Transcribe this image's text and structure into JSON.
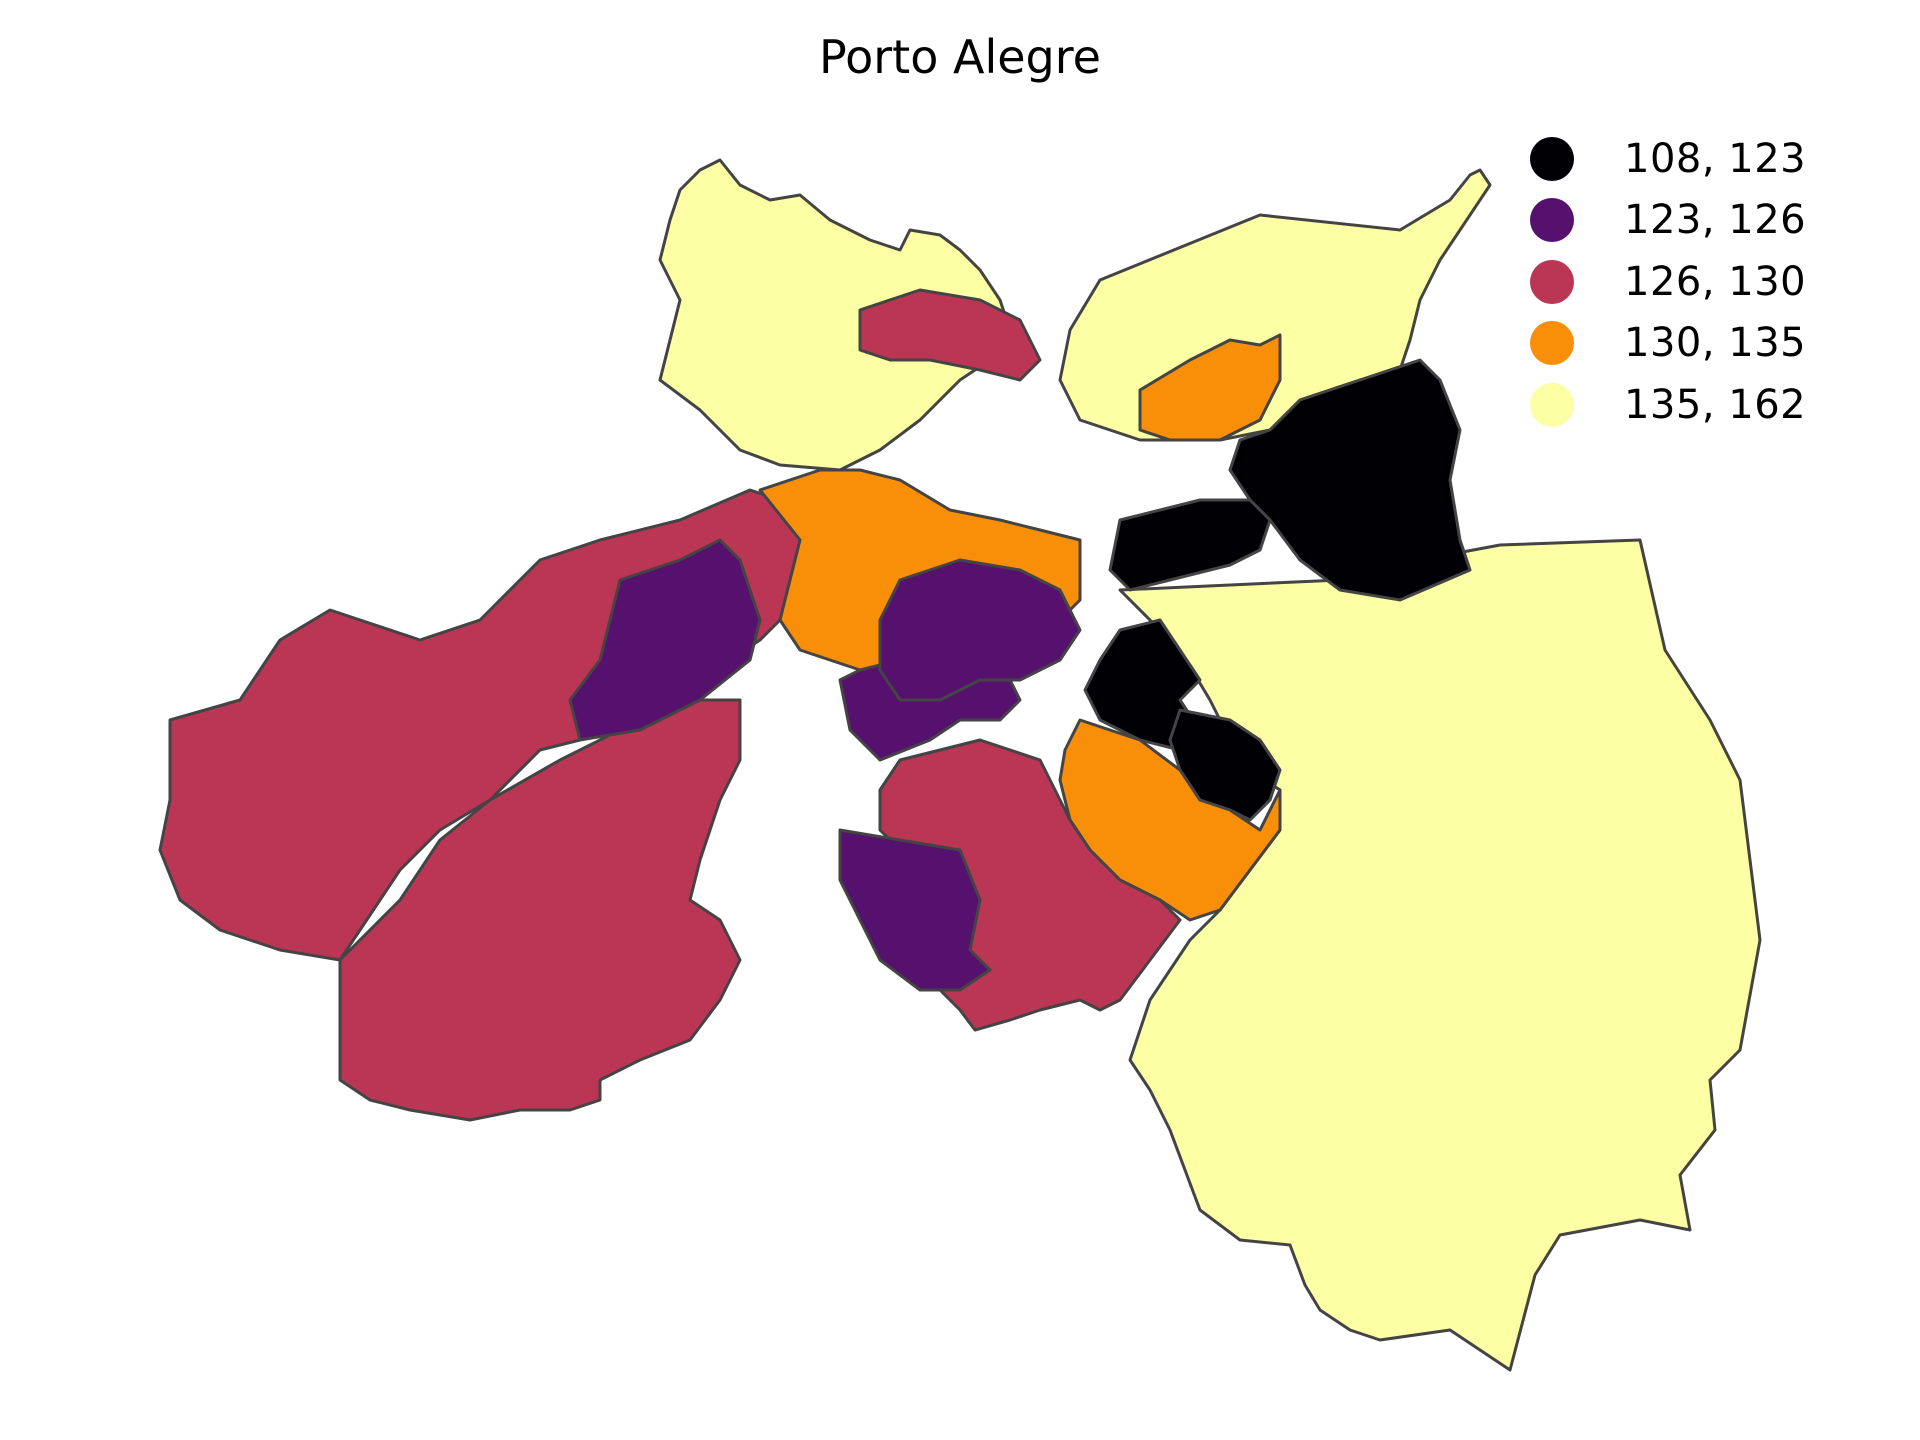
{
  "title": "Porto Alegre",
  "legend": [
    {
      "label": "108, 123",
      "color": "#000004"
    },
    {
      "label": "123, 126",
      "color": "#56106e"
    },
    {
      "label": "126, 130",
      "color": "#bb3654"
    },
    {
      "label": "130, 135",
      "color": "#f98e09"
    },
    {
      "label": "135, 162",
      "color": "#fcffa4"
    }
  ],
  "regions": {
    "north": "135, 162",
    "northeast": "135, 162",
    "east": "108, 123",
    "southeast": "135, 162",
    "south_center": "126, 130",
    "south_center_west": "123, 126",
    "southwest_left": "126, 130",
    "southwest_right": "126, 130",
    "west_inner": "123, 126",
    "center_west": "130, 135",
    "center": "123, 126",
    "center_east": "108, 123",
    "east_mid": "130, 135",
    "inner_north": "126, 130"
  }
}
